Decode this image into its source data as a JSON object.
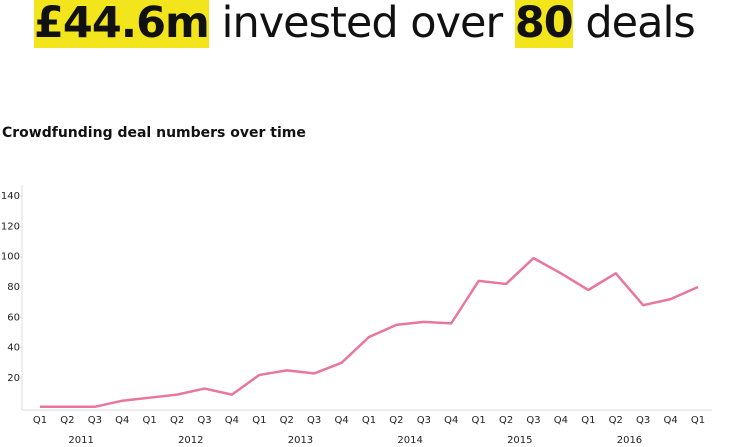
{
  "headline": [
    {
      "text": "£44.6m",
      "highlight": true
    },
    {
      "text": " invested over ",
      "highlight": false
    },
    {
      "text": "80",
      "highlight": true
    },
    {
      "text": " deals",
      "highlight": false
    }
  ],
  "chart_data": {
    "type": "line",
    "title": "Crowdfunding deal numbers over time",
    "categories": [
      "Q1",
      "Q2",
      "Q3",
      "Q4",
      "Q1",
      "Q2",
      "Q3",
      "Q4",
      "Q1",
      "Q2",
      "Q3",
      "Q4",
      "Q1",
      "Q2",
      "Q3",
      "Q4",
      "Q1",
      "Q2",
      "Q3",
      "Q4",
      "Q1",
      "Q2",
      "Q3",
      "Q4",
      "Q1"
    ],
    "years": [
      "2011",
      "2012",
      "2013",
      "2014",
      "2015",
      "2016"
    ],
    "values": [
      1,
      1,
      1,
      5,
      7,
      9,
      13,
      9,
      22,
      25,
      23,
      30,
      47,
      55,
      57,
      56,
      84,
      82,
      99,
      89,
      78,
      89,
      68,
      72,
      80
    ],
    "color": "#e8769f",
    "ylim": [
      0,
      150
    ],
    "yticks": [
      20,
      40,
      60,
      80,
      100,
      120,
      140
    ],
    "grid": false
  }
}
